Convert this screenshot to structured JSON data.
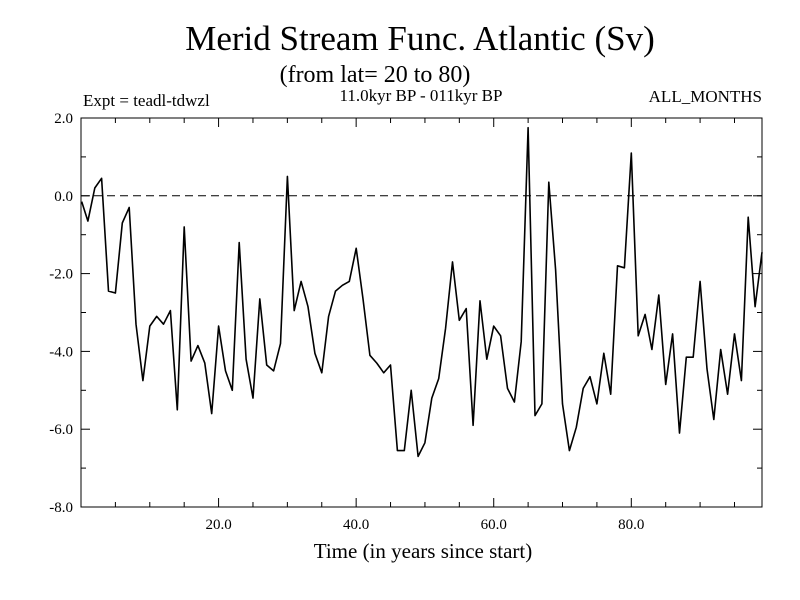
{
  "chart_data": {
    "type": "line",
    "title": "Merid Stream Func. Atlantic (Sv)",
    "subtitle": "(from lat= 20 to 80)",
    "left_note": "Expt = teadl-tdwzl",
    "center_note": "11.0kyr BP - 011kyr BP",
    "right_note": "ALL_MONTHS",
    "xlabel": "Time (in years since start)",
    "ylabel": "",
    "xlim": [
      0,
      99
    ],
    "ylim": [
      -8.0,
      2.0
    ],
    "x_ticks": [
      20,
      40,
      60,
      80
    ],
    "x_tick_labels": [
      "20.0",
      "40.0",
      "60.0",
      "80.0"
    ],
    "y_ticks": [
      -8,
      -6,
      -4,
      -2,
      0,
      2
    ],
    "y_tick_labels": [
      "-8.0",
      "-6.0",
      "-4.0",
      "-2.0",
      "0.0",
      "2.0"
    ],
    "reference_line": 0,
    "series": [
      {
        "name": "Merid Stream Func",
        "x": [
          0.1,
          1,
          2,
          3,
          4,
          5,
          6,
          7,
          8,
          9,
          10,
          11,
          12,
          13,
          14,
          15,
          16,
          17,
          18,
          19,
          20,
          21,
          22,
          23,
          24,
          25,
          26,
          27,
          28,
          29,
          30,
          31,
          32,
          33,
          34,
          35,
          36,
          37,
          38,
          39,
          40,
          41,
          42,
          43,
          44,
          45,
          46,
          47,
          48,
          49,
          50,
          51,
          52,
          53,
          54,
          55,
          56,
          57,
          58,
          59,
          60,
          61,
          62,
          63,
          64,
          65,
          66,
          67,
          68,
          69,
          70,
          71,
          72,
          73,
          74,
          75,
          76,
          77,
          78,
          79,
          80,
          81,
          82,
          83,
          84,
          85,
          86,
          87,
          88,
          89,
          90,
          91,
          92,
          93,
          94,
          95,
          96,
          97,
          98,
          99
        ],
        "y": [
          -0.15,
          -0.65,
          0.2,
          0.45,
          -2.45,
          -2.5,
          -0.7,
          -0.3,
          -3.3,
          -4.75,
          -3.35,
          -3.1,
          -3.3,
          -2.95,
          -5.5,
          -0.8,
          -4.25,
          -3.85,
          -4.3,
          -5.6,
          -3.35,
          -4.5,
          -5.0,
          -1.2,
          -4.2,
          -5.2,
          -2.65,
          -4.35,
          -4.5,
          -3.8,
          0.5,
          -2.95,
          -2.2,
          -2.85,
          -4.05,
          -4.55,
          -3.1,
          -2.45,
          -2.3,
          -2.2,
          -1.35,
          -2.65,
          -4.1,
          -4.3,
          -4.55,
          -4.35,
          -6.55,
          -6.55,
          -5.0,
          -6.7,
          -6.35,
          -5.2,
          -4.7,
          -3.4,
          -1.7,
          -3.2,
          -2.9,
          -5.9,
          -2.7,
          -4.2,
          -3.35,
          -3.6,
          -4.95,
          -5.3,
          -3.75,
          1.75,
          -5.65,
          -5.35,
          0.35,
          -1.9,
          -5.35,
          -6.55,
          -5.95,
          -4.95,
          -4.65,
          -5.35,
          -4.05,
          -5.1,
          -1.8,
          -1.85,
          1.1,
          -3.6,
          -3.05,
          -3.95,
          -2.55,
          -4.85,
          -3.55,
          -6.1,
          -4.15,
          -4.15,
          -2.2,
          -4.45,
          -5.75,
          -3.95,
          -5.1,
          -3.55,
          -4.75,
          -0.55,
          -2.85,
          -1.45
        ]
      }
    ]
  }
}
